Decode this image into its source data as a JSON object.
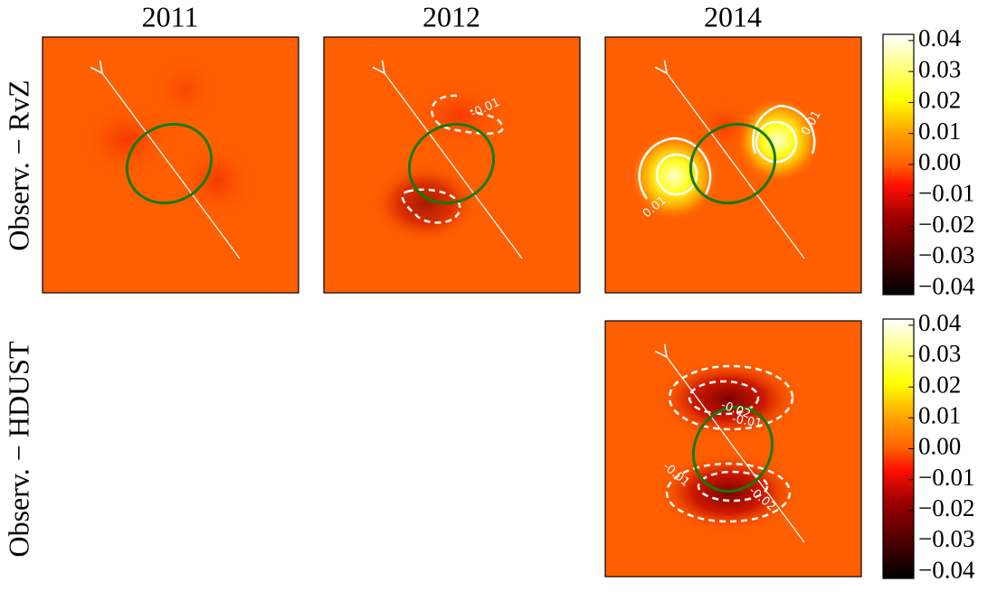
{
  "chart_data": {
    "type": "heatmap",
    "column_titles": [
      "2011",
      "2012",
      "2014"
    ],
    "row_titles": [
      "Observ. − RvZ",
      "Observ. − HDUST"
    ],
    "colorbar": {
      "lim": [
        -0.042,
        0.042
      ],
      "ticks": [
        {
          "value": 0.04,
          "label": "0.04"
        },
        {
          "value": 0.03,
          "label": "0.03"
        },
        {
          "value": 0.02,
          "label": "0.02"
        },
        {
          "value": 0.01,
          "label": "0.01"
        },
        {
          "value": 0.0,
          "label": "0.00"
        },
        {
          "value": -0.01,
          "label": "−0.01"
        },
        {
          "value": -0.02,
          "label": "−0.02"
        },
        {
          "value": -0.03,
          "label": "−0.03"
        },
        {
          "value": -0.04,
          "label": "−0.04"
        }
      ]
    },
    "contour_labels": [
      "-0.01",
      "0.01",
      "0.01",
      "-0.02",
      "-0.01",
      "-0.01",
      "-0.02"
    ]
  }
}
